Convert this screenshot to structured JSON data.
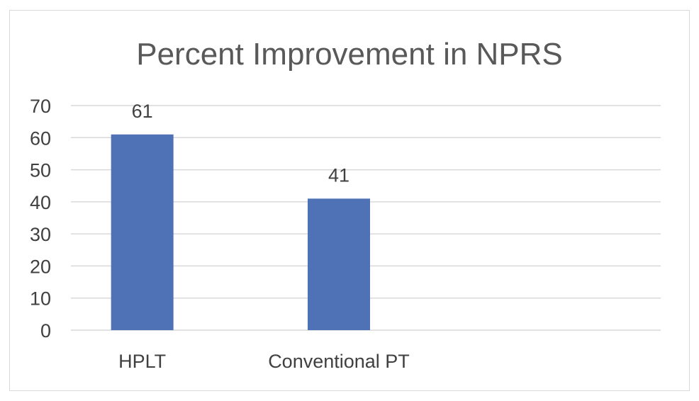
{
  "chart_data": {
    "type": "bar",
    "title": "Percent Improvement in NPRS",
    "categories": [
      "HPLT",
      "Conventional PT"
    ],
    "values": [
      61,
      41
    ],
    "data_labels": [
      "61",
      "41"
    ],
    "xlabel": "",
    "ylabel": "",
    "ylim": [
      0,
      70
    ],
    "yticks": [
      0,
      10,
      20,
      30,
      40,
      50,
      60,
      70
    ],
    "grid": true,
    "legend": "none",
    "colors": {
      "bar": "#4f71b5",
      "grid": "#d9d9d9",
      "text": "#404040",
      "title": "#595959"
    }
  }
}
